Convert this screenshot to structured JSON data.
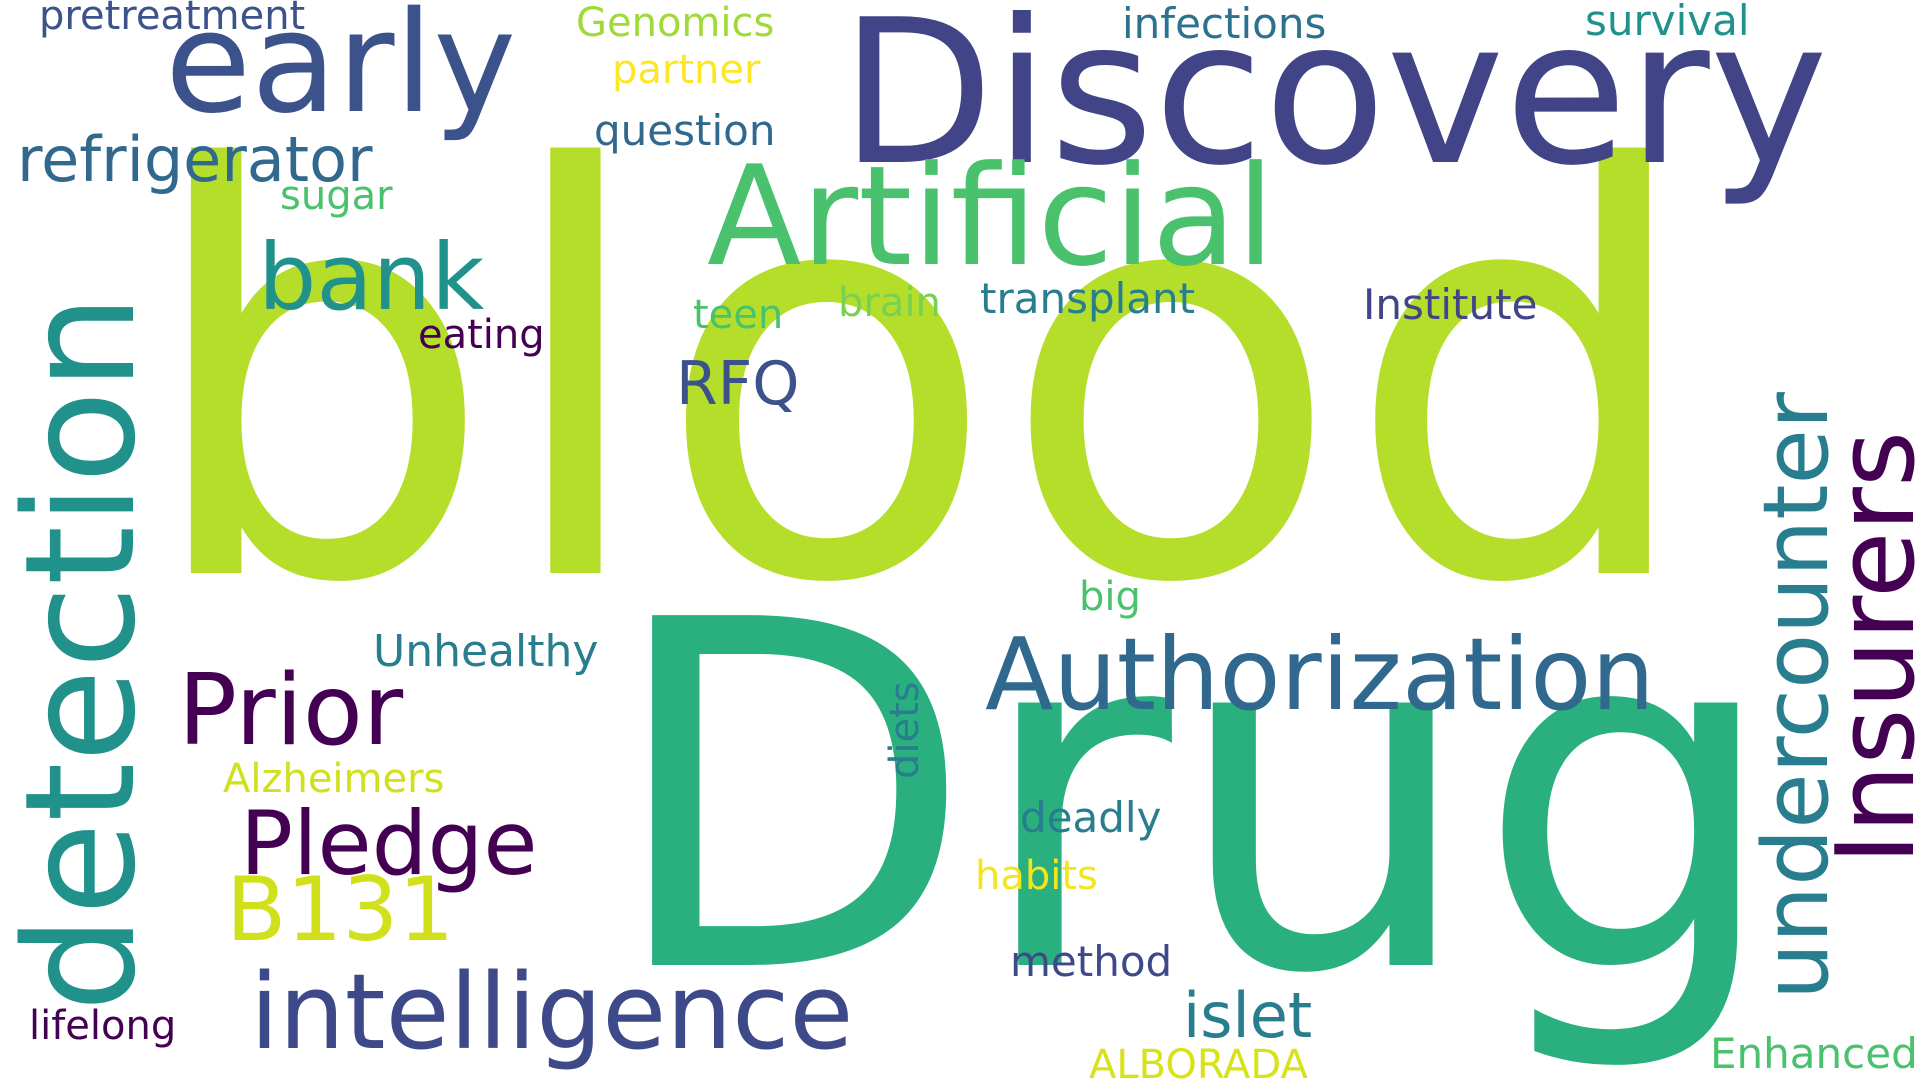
{
  "words": {
    "blood": "blood",
    "drug": "Drug",
    "discovery": "Discovery",
    "early": "early",
    "artificial": "Artificial",
    "detection": "detection",
    "intelligence": "intelligence",
    "authorization": "Authorization",
    "insurers": "Insurers",
    "undercounter": "undercounter",
    "prior": "Prior",
    "pledge": "Pledge",
    "bank": "bank",
    "b131": "B131",
    "refrigerator": "refrigerator",
    "islet": "islet",
    "rfq": "RFQ",
    "unhealthy": "Unhealthy",
    "method": "method",
    "deadly": "deadly",
    "enhanced": "Enhanced",
    "institute": "Institute",
    "transplant": "transplant",
    "question": "question",
    "infections": "infections",
    "survival": "survival",
    "pretreatment": "pretreatment",
    "genomics": "Genomics",
    "partner": "partner",
    "eating": "eating",
    "lifelong": "lifelong",
    "habits": "habits",
    "alborada": "ALBORADA",
    "alzheimers": "Alzheimers",
    "teen": "teen",
    "brain": "brain",
    "sugar": "sugar",
    "big": "big",
    "diets": "diets"
  },
  "palette": {
    "background": "#ffffff",
    "dark_purple": "#440154",
    "indigo": "#414487",
    "blue": "#31688e",
    "teal": "#21918c",
    "green": "#2ab07f",
    "light_green": "#4ac16d",
    "lime": "#b5de2b",
    "yellow": "#fde725"
  }
}
